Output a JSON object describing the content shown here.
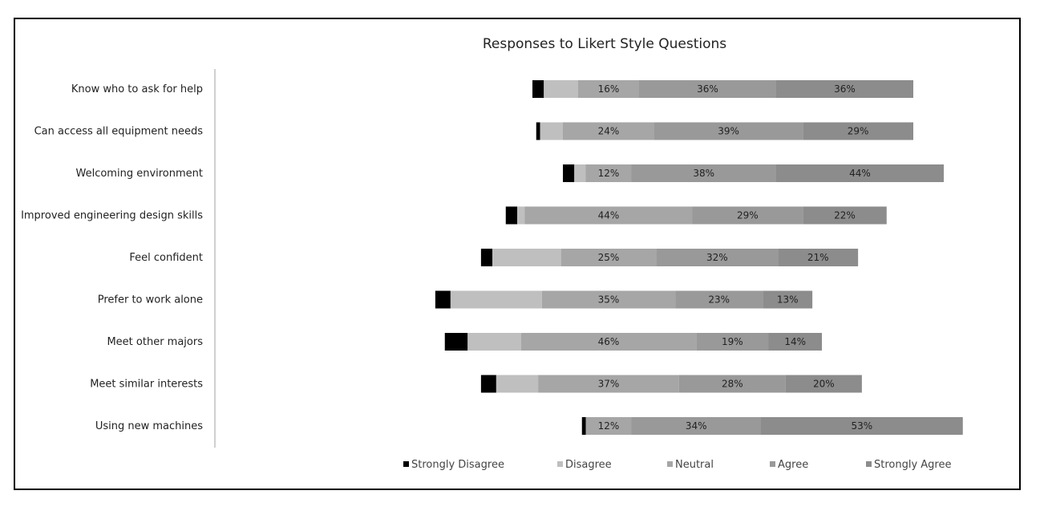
{
  "chart_data": {
    "type": "bar",
    "orientation": "horizontal",
    "stacked": true,
    "diverging": true,
    "title": "Responses to Likert Style Questions",
    "xlabel": "",
    "ylabel": "",
    "categories": [
      "Know who to ask for help",
      "Can access all equipment needs",
      "Welcoming environment",
      "Improved engineering design skills",
      "Feel confident",
      "Prefer to work alone",
      "Meet other majors",
      "Meet similar interests",
      "Using new machines"
    ],
    "series": [
      {
        "name": "Strongly Disagree",
        "color": "#000000",
        "values": [
          3,
          1,
          3,
          3,
          3,
          4,
          6,
          4,
          1
        ]
      },
      {
        "name": "Disagree",
        "color": "#bfbfbf",
        "values": [
          9,
          6,
          3,
          2,
          18,
          24,
          14,
          11,
          0
        ]
      },
      {
        "name": "Neutral",
        "color": "#a6a6a6",
        "values": [
          16,
          24,
          12,
          44,
          25,
          35,
          46,
          37,
          12
        ]
      },
      {
        "name": "Agree",
        "color": "#999999",
        "values": [
          36,
          39,
          38,
          29,
          32,
          23,
          19,
          28,
          34
        ]
      },
      {
        "name": "Strongly Agree",
        "color": "#8c8c8c",
        "values": [
          36,
          29,
          44,
          22,
          21,
          13,
          14,
          20,
          53
        ]
      }
    ],
    "data_labels": [
      [
        "16%",
        "36%",
        "36%"
      ],
      [
        "24%",
        "39%",
        "29%"
      ],
      [
        "12%",
        "38%",
        "44%"
      ],
      [
        "44%",
        "29%",
        "22%"
      ],
      [
        "25%",
        "32%",
        "21%"
      ],
      [
        "35%",
        "23%",
        "13%"
      ],
      [
        "46%",
        "19%",
        "14%"
      ],
      [
        "37%",
        "28%",
        "20%"
      ],
      [
        "12%",
        "34%",
        "53%"
      ]
    ],
    "labeled_series": [
      "Neutral",
      "Agree",
      "Strongly Agree"
    ],
    "legend": "bottom",
    "grid": false
  }
}
